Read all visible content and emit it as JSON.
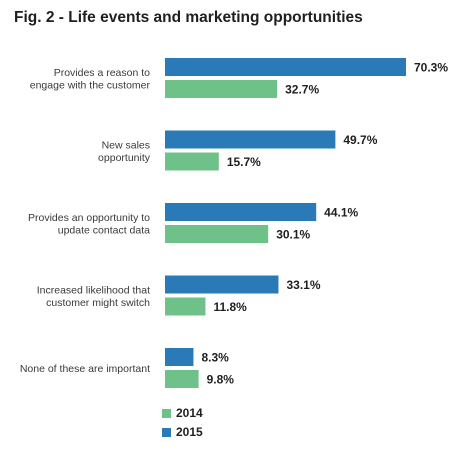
{
  "title": "Fig. 2  - Life events and marketing opportunities",
  "colors": {
    "2014": "#6fc18a",
    "2015": "#2a7ab7"
  },
  "chart_data": {
    "type": "bar",
    "orientation": "horizontal",
    "title": "Fig. 2  - Life events and marketing opportunities",
    "categories": [
      [
        "Provides a reason to",
        "engage with the customer"
      ],
      [
        "New sales",
        "opportunity"
      ],
      [
        "Provides an opportunity to",
        "update contact data"
      ],
      [
        "Increased likelihood that",
        "customer might switch"
      ],
      [
        "None of these are important"
      ]
    ],
    "series": [
      {
        "name": "2015",
        "values": [
          70.3,
          49.7,
          44.1,
          33.1,
          8.3
        ],
        "labels": [
          "70.3%",
          "49.7%",
          "44.1%",
          "33.1%",
          "8.3%"
        ]
      },
      {
        "name": "2014",
        "values": [
          32.7,
          15.7,
          30.1,
          11.8,
          9.8
        ],
        "labels": [
          "32.7%",
          "15.7%",
          "30.1%",
          "11.8%",
          "9.8%"
        ]
      }
    ],
    "xlim": [
      0,
      70.3
    ],
    "grid": false,
    "legend": {
      "position": "bottom",
      "entries": [
        "2014",
        "2015"
      ]
    }
  }
}
